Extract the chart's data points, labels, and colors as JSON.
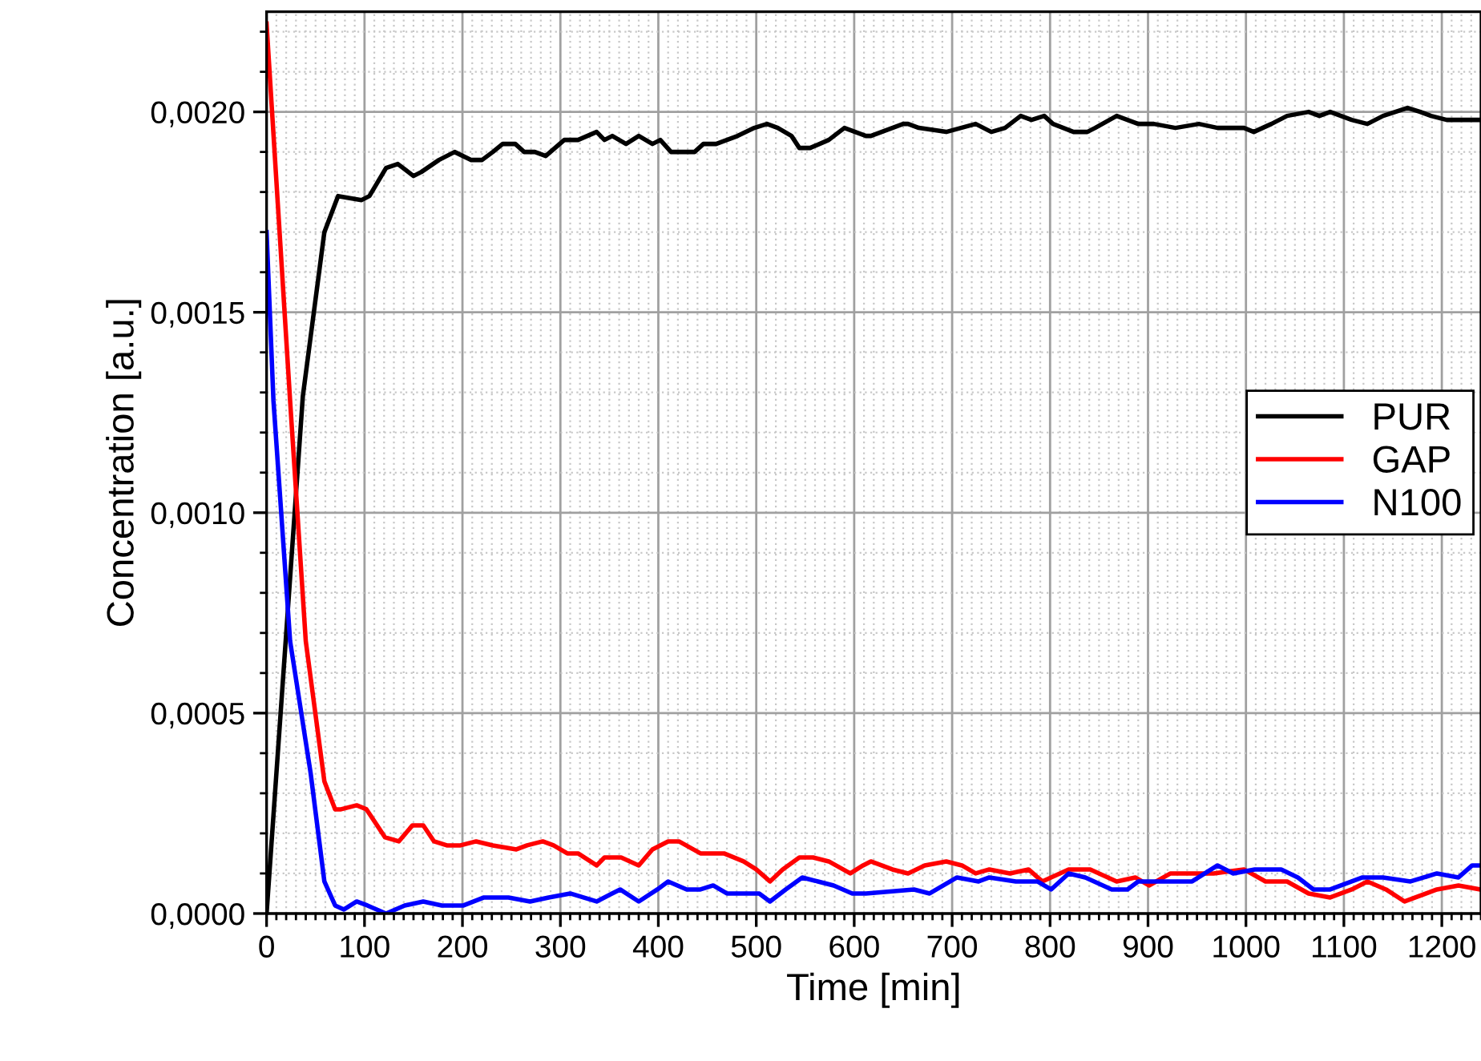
{
  "chart_data": {
    "type": "line",
    "xlabel": "Time [min]",
    "ylabel": "Concentration [a.u.]",
    "xlim": [
      0,
      1240
    ],
    "xticks": [
      0,
      100,
      200,
      300,
      400,
      500,
      600,
      700,
      800,
      900,
      1000,
      1100,
      1200
    ],
    "ylim": [
      0,
      0.00225
    ],
    "yticks": [
      {
        "value": 0,
        "label": "0,0000"
      },
      {
        "value": 0.0005,
        "label": "0,0005"
      },
      {
        "value": 0.001,
        "label": "0,0010"
      },
      {
        "value": 0.0015,
        "label": "0,0015"
      },
      {
        "value": 0.002,
        "label": "0,0020"
      }
    ],
    "grid": true,
    "legend": "right",
    "line_style": "solid",
    "marker": "none",
    "series": [
      {
        "name": "PUR",
        "color": "#000000",
        "x": [
          0,
          37,
          59,
          73,
          97,
          105,
          122,
          134,
          150,
          158,
          176,
          192,
          209,
          220,
          231,
          241,
          254,
          263,
          274,
          285,
          304,
          318,
          337,
          345,
          353,
          367,
          380,
          394,
          402,
          413,
          426,
          437,
          446,
          459,
          470,
          481,
          498,
          511,
          522,
          536,
          544,
          555,
          574,
          590,
          612,
          617,
          650,
          655,
          666,
          694,
          724,
          740,
          754,
          770,
          781,
          794,
          803,
          824,
          838,
          846,
          868,
          890,
          906,
          928,
          952,
          971,
          998,
          1008,
          1026,
          1042,
          1064,
          1075,
          1086,
          1108,
          1124,
          1140,
          1165,
          1178,
          1189,
          1205,
          1237
        ],
        "values": [
          0,
          0.00129,
          0.0017,
          0.00179,
          0.00178,
          0.00179,
          0.00186,
          0.00187,
          0.00184,
          0.00185,
          0.00188,
          0.0019,
          0.00188,
          0.00188,
          0.0019,
          0.00192,
          0.00192,
          0.0019,
          0.0019,
          0.00189,
          0.00193,
          0.00193,
          0.00195,
          0.00193,
          0.00194,
          0.00192,
          0.00194,
          0.00192,
          0.00193,
          0.0019,
          0.0019,
          0.0019,
          0.00192,
          0.00192,
          0.00193,
          0.00194,
          0.00196,
          0.00197,
          0.00196,
          0.00194,
          0.00191,
          0.00191,
          0.00193,
          0.00196,
          0.00194,
          0.00194,
          0.00197,
          0.00197,
          0.00196,
          0.00195,
          0.00197,
          0.00195,
          0.00196,
          0.00199,
          0.00198,
          0.00199,
          0.00197,
          0.00195,
          0.00195,
          0.00196,
          0.00199,
          0.00197,
          0.00197,
          0.00196,
          0.00197,
          0.00196,
          0.00196,
          0.00195,
          0.00197,
          0.00199,
          0.002,
          0.00199,
          0.002,
          0.00198,
          0.00197,
          0.00199,
          0.00201,
          0.002,
          0.00199,
          0.00198,
          0.00198
        ]
      },
      {
        "name": "GAP",
        "color": "#ff0000",
        "x": [
          0,
          24,
          40,
          59,
          70,
          76,
          92,
          102,
          121,
          135,
          149,
          160,
          171,
          184,
          198,
          214,
          231,
          255,
          266,
          282,
          293,
          307,
          318,
          337,
          345,
          362,
          380,
          394,
          410,
          421,
          443,
          454,
          467,
          487,
          500,
          514,
          527,
          544,
          558,
          574,
          596,
          609,
          617,
          639,
          655,
          672,
          694,
          710,
          724,
          738,
          759,
          778,
          792,
          819,
          841,
          868,
          887,
          901,
          923,
          945,
          967,
          998,
          1020,
          1042,
          1064,
          1086,
          1108,
          1124,
          1143,
          1162,
          1173,
          1195,
          1217,
          1239
        ],
        "values": [
          0.00222,
          0.00128,
          0.00068,
          0.00033,
          0.00026,
          0.00026,
          0.00027,
          0.00026,
          0.00019,
          0.00018,
          0.00022,
          0.00022,
          0.00018,
          0.00017,
          0.00017,
          0.00018,
          0.00017,
          0.00016,
          0.00017,
          0.00018,
          0.00017,
          0.00015,
          0.00015,
          0.00012,
          0.00014,
          0.00014,
          0.00012,
          0.00016,
          0.00018,
          0.00018,
          0.00015,
          0.00015,
          0.00015,
          0.00013,
          0.00011,
          8e-05,
          0.00011,
          0.00014,
          0.00014,
          0.00013,
          0.0001,
          0.00012,
          0.00013,
          0.00011,
          0.0001,
          0.00012,
          0.00013,
          0.00012,
          0.0001,
          0.00011,
          0.0001,
          0.00011,
          8e-05,
          0.00011,
          0.00011,
          8e-05,
          9e-05,
          7e-05,
          0.0001,
          0.0001,
          0.0001,
          0.00011,
          8e-05,
          8e-05,
          5e-05,
          4e-05,
          6e-05,
          8e-05,
          6e-05,
          3e-05,
          4e-05,
          6e-05,
          7e-05,
          6e-05
        ]
      },
      {
        "name": "N100",
        "color": "#0000ff",
        "x": [
          0,
          7,
          24,
          45,
          59,
          70,
          79,
          92,
          103,
          122,
          141,
          160,
          179,
          201,
          222,
          247,
          269,
          288,
          310,
          337,
          361,
          380,
          399,
          410,
          429,
          443,
          456,
          470,
          503,
          514,
          530,
          547,
          563,
          579,
          598,
          612,
          661,
          677,
          705,
          727,
          738,
          765,
          787,
          801,
          819,
          836,
          863,
          879,
          890,
          923,
          945,
          971,
          987,
          1009,
          1036,
          1053,
          1069,
          1086,
          1119,
          1140,
          1168,
          1195,
          1217,
          1231,
          1239
        ],
        "values": [
          0.0017,
          0.00128,
          0.00068,
          0.00035,
          8e-05,
          2e-05,
          1e-05,
          3e-05,
          2e-05,
          0,
          2e-05,
          3e-05,
          2e-05,
          2e-05,
          4e-05,
          4e-05,
          3e-05,
          4e-05,
          5e-05,
          3e-05,
          6e-05,
          3e-05,
          6e-05,
          8e-05,
          6e-05,
          6e-05,
          7e-05,
          5e-05,
          5e-05,
          3e-05,
          6e-05,
          9e-05,
          8e-05,
          7e-05,
          5e-05,
          5e-05,
          6e-05,
          5e-05,
          9e-05,
          8e-05,
          9e-05,
          8e-05,
          8e-05,
          6e-05,
          0.0001,
          9e-05,
          6e-05,
          6e-05,
          8e-05,
          8e-05,
          8e-05,
          0.00012,
          0.0001,
          0.00011,
          0.00011,
          9e-05,
          6e-05,
          6e-05,
          9e-05,
          9e-05,
          8e-05,
          0.0001,
          9e-05,
          0.00012,
          0.00012
        ]
      }
    ]
  }
}
